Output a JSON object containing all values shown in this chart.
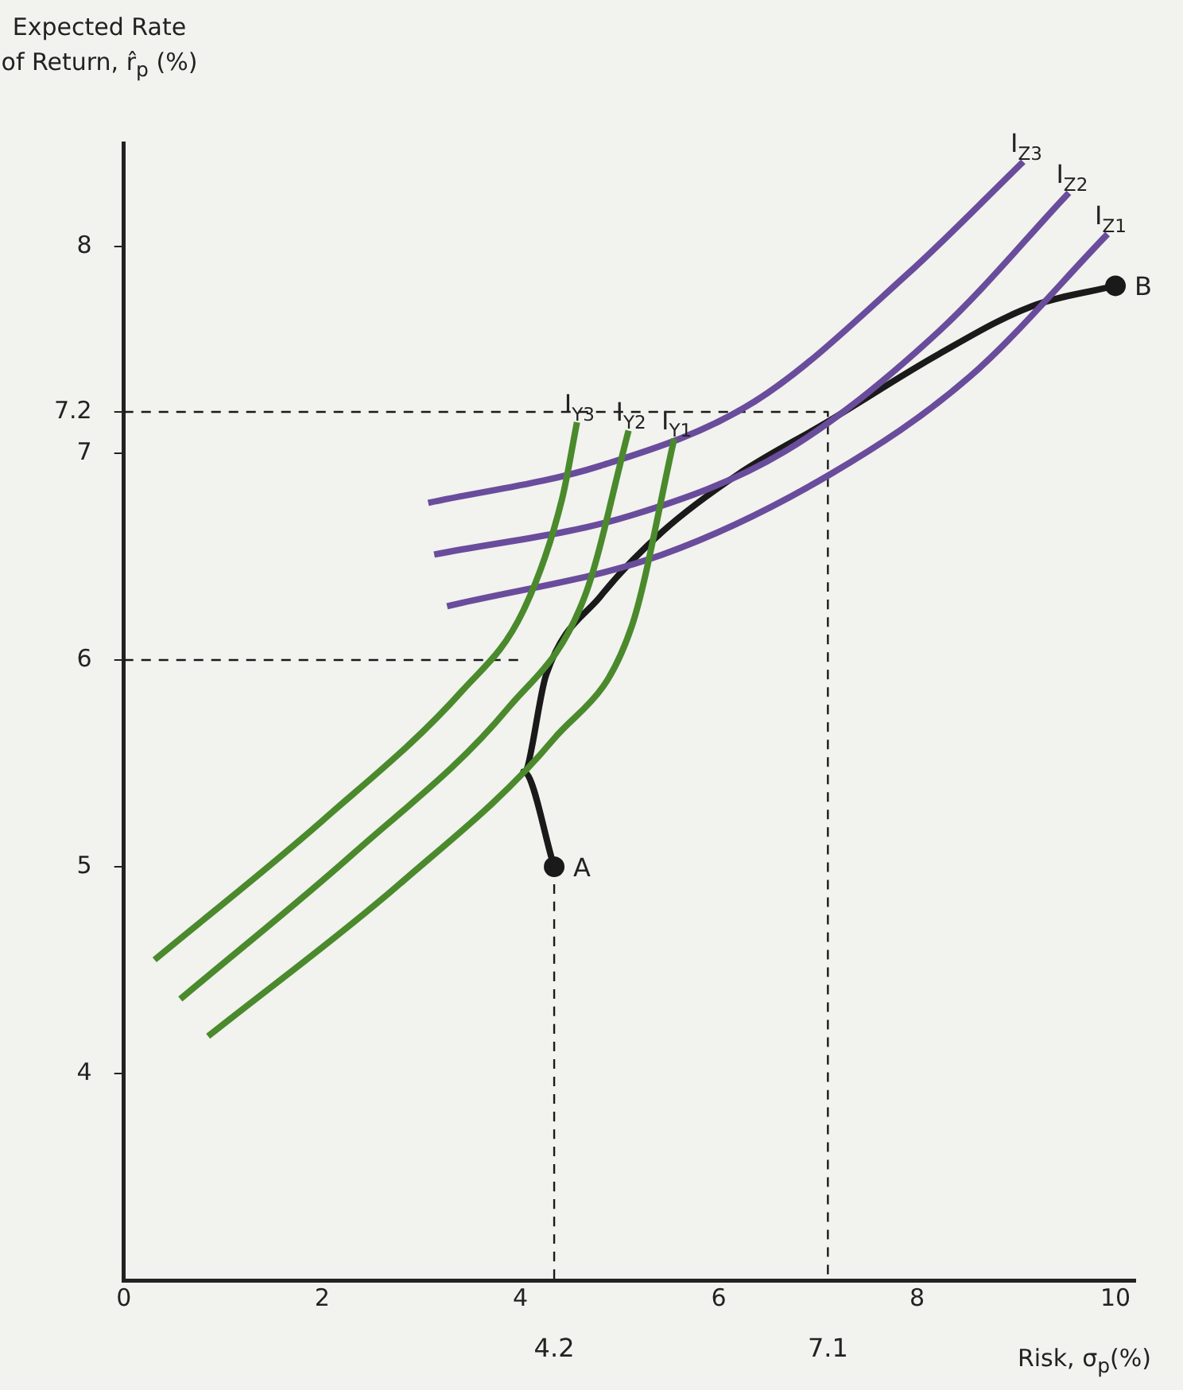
{
  "chart_data": {
    "type": "line",
    "xlabel": "Risk, σ$_{p}$(%)",
    "ylabel": "Expected Rate of Return, r̂$_{p}$ (%)",
    "xlim": [
      0,
      10.2
    ],
    "xticks": [
      0,
      2,
      4,
      6,
      8,
      10
    ],
    "ylim": [
      3,
      8.5
    ],
    "yticks": [
      4,
      5,
      6,
      {
        "value": 7,
        "label": "7"
      },
      {
        "value": 7.2,
        "label": "7.2"
      },
      8
    ],
    "grid": false,
    "legend": false,
    "marker": "none",
    "line_style": "solid",
    "series": [
      {
        "name": "I$_{Y3}$",
        "color": "#4a8a2c",
        "x": [
          0.31,
          2.02,
          3.41,
          4.03,
          4.42,
          4.57
        ],
        "values": [
          4.55,
          5.23,
          5.85,
          6.24,
          6.78,
          7.15
        ]
      },
      {
        "name": "I$_{Y2}$",
        "color": "#4a8a2c",
        "x": [
          0.57,
          2.33,
          3.88,
          4.65,
          5.09
        ],
        "values": [
          4.36,
          5.07,
          5.77,
          6.31,
          7.11
        ]
      },
      {
        "name": "I$_{Y1}$",
        "color": "#4a8a2c",
        "x": [
          0.85,
          2.79,
          4.34,
          5.12,
          5.55
        ],
        "values": [
          4.18,
          4.92,
          5.62,
          6.16,
          7.07
        ]
      },
      {
        "name": "I$_{Z3}$",
        "color": "#6a4c9c",
        "x": [
          3.07,
          4.81,
          6.36,
          7.91,
          9.07
        ],
        "values": [
          6.76,
          6.94,
          7.25,
          7.87,
          8.41
        ]
      },
      {
        "name": "I$_{Z2}$",
        "color": "#6a4c9c",
        "x": [
          3.13,
          5.12,
          6.67,
          8.22,
          9.53
        ],
        "values": [
          6.51,
          6.7,
          7.01,
          7.59,
          8.26
        ]
      },
      {
        "name": "I$_{Z1}$",
        "color": "#6a4c9c",
        "x": [
          3.26,
          5.43,
          7.13,
          8.53,
          9.92
        ],
        "values": [
          6.26,
          6.51,
          6.9,
          7.37,
          8.06
        ]
      },
      {
        "color": "#1a1a1a",
        "x": [
          4.34,
          4.03,
          4.26,
          4.81,
          5.43,
          6.2,
          7.09,
          8.22,
          9.15,
          10
        ],
        "values": [
          5,
          5.46,
          5.93,
          6.31,
          6.62,
          6.9,
          7.15,
          7.48,
          7.71,
          7.81
        ]
      },
      {
        "type": "scatter",
        "marker": "circle",
        "color": "#1a1a1a",
        "x": [
          4.34,
          10
        ],
        "values": [
          5,
          7.81
        ]
      },
      {
        "line_style": "dashed",
        "color": "#1a1a1a",
        "x": [
          0,
          7.1,
          7.1
        ],
        "values": [
          7.2,
          7.2,
          3
        ]
      },
      {
        "line_style": "dashed",
        "color": "#1a1a1a",
        "x": [
          0,
          4.03
        ],
        "values": [
          6,
          6
        ]
      },
      {
        "line_style": "dashed",
        "color": "#1a1a1a",
        "x": [
          4.34,
          4.34
        ],
        "values": [
          5,
          3
        ]
      }
    ],
    "annotations": [
      {
        "text": "A",
        "x": 4.34,
        "y": 5
      },
      {
        "text": "B",
        "x": 10,
        "y": 7.81
      },
      {
        "text": "4.2",
        "x": 4.34,
        "y": 3
      },
      {
        "text": "7.1",
        "x": 7.1,
        "y": 3
      }
    ]
  }
}
